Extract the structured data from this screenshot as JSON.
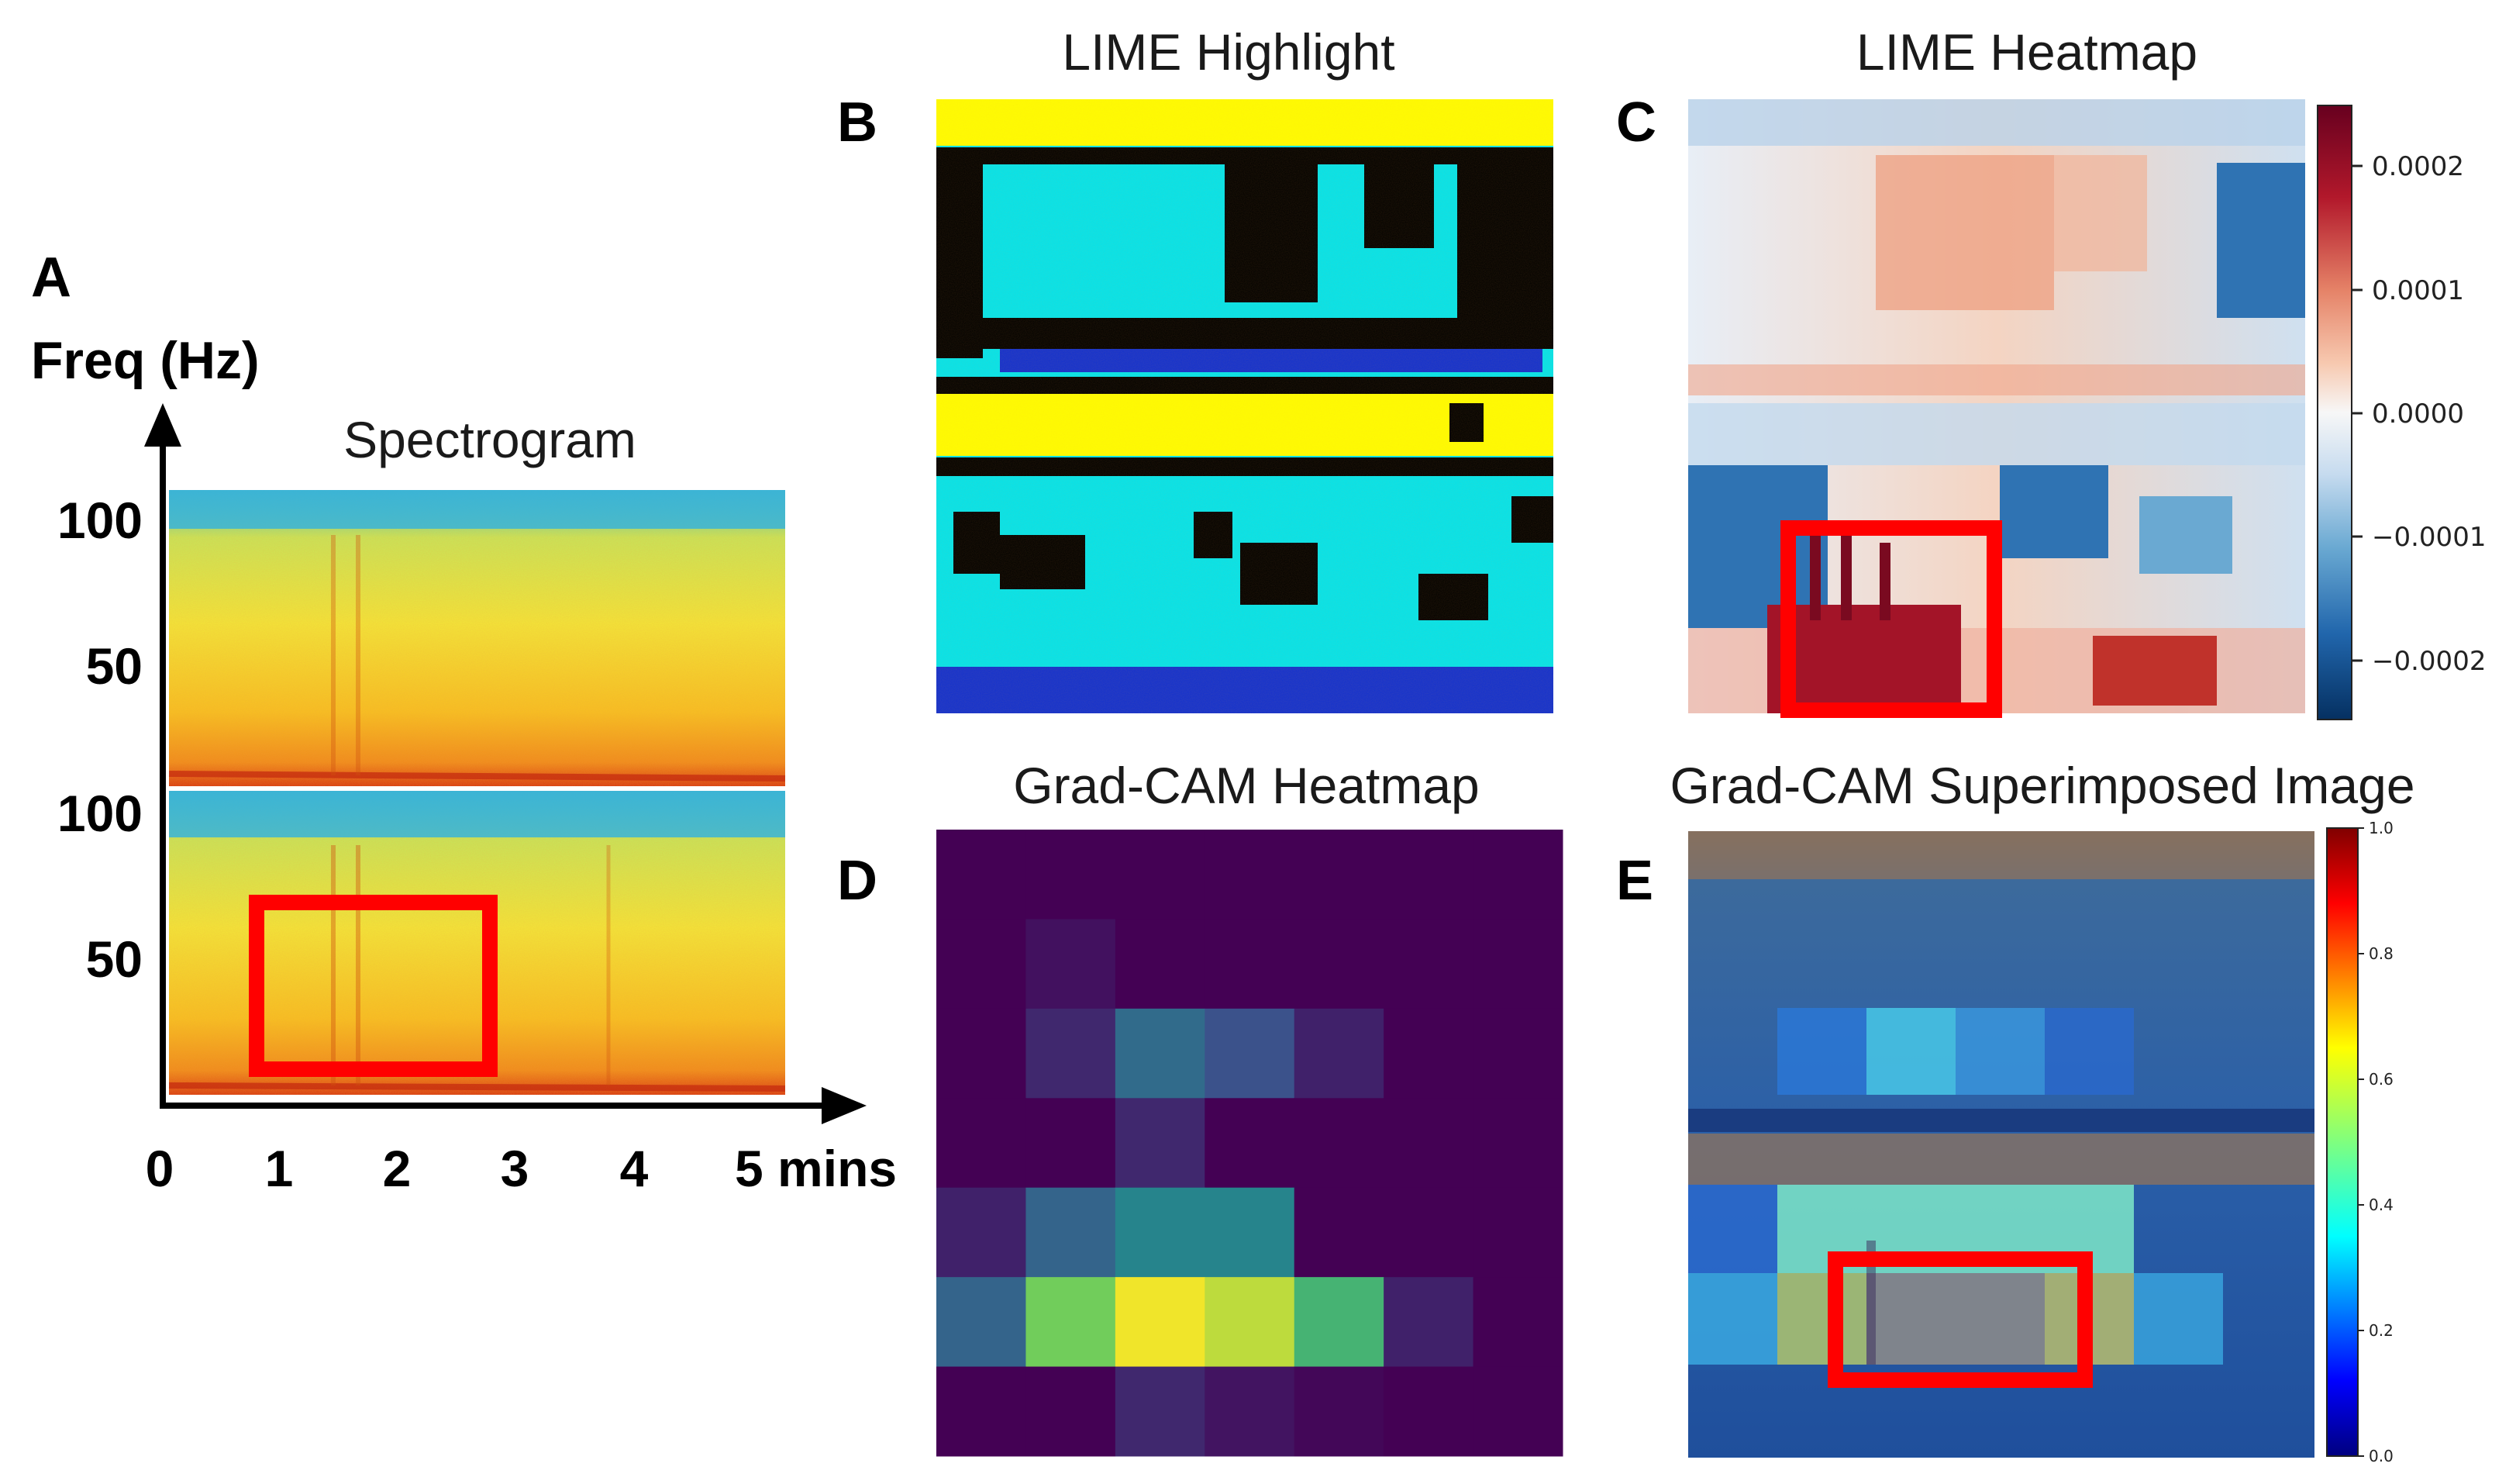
{
  "panels": {
    "A": {
      "letter": "A",
      "title": "Spectrogram",
      "y_axis_label": "Freq (Hz)",
      "y_ticks_upper": [
        "100",
        "50"
      ],
      "y_ticks_lower": [
        "100",
        "50"
      ],
      "x_ticks": [
        "0",
        "1",
        "2",
        "3",
        "4"
      ],
      "x_last_tick": "5 mins"
    },
    "B": {
      "letter": "B",
      "title": "LIME Highlight"
    },
    "C": {
      "letter": "C",
      "title": "LIME Heatmap",
      "colorbar_ticks": [
        "0.0002",
        "0.0001",
        "0.0000",
        "−0.0001",
        "−0.0002"
      ]
    },
    "D": {
      "letter": "D",
      "title": "Grad-CAM Heatmap"
    },
    "E": {
      "letter": "E",
      "title": "Grad-CAM Superimposed Image",
      "colorbar_ticks": [
        "1.0",
        "0.8",
        "0.6",
        "0.4",
        "0.2",
        "0.0"
      ]
    }
  },
  "colors": {
    "highlight_box": "#ff0000",
    "viridis_dark": "#440154",
    "lime_yellow": "#ffff00",
    "lime_cyan": "#00e5ee",
    "lime_black": "#000000",
    "lime_blue": "#1030d0"
  },
  "gradcam_grid": {
    "rows": 7,
    "cols": 7,
    "values": [
      [
        0.0,
        0.0,
        0.0,
        0.0,
        0.0,
        0.0,
        0.0
      ],
      [
        0.0,
        0.05,
        0.0,
        0.0,
        0.0,
        0.0,
        0.0
      ],
      [
        0.0,
        0.12,
        0.35,
        0.25,
        0.1,
        0.0,
        0.0
      ],
      [
        0.0,
        0.0,
        0.12,
        0.0,
        0.0,
        0.0,
        0.0
      ],
      [
        0.1,
        0.32,
        0.45,
        0.45,
        0.0,
        0.0,
        0.0
      ],
      [
        0.32,
        0.78,
        0.98,
        0.9,
        0.65,
        0.1,
        0.0
      ],
      [
        0.0,
        0.0,
        0.12,
        0.06,
        0.02,
        0.0,
        0.0
      ]
    ]
  }
}
